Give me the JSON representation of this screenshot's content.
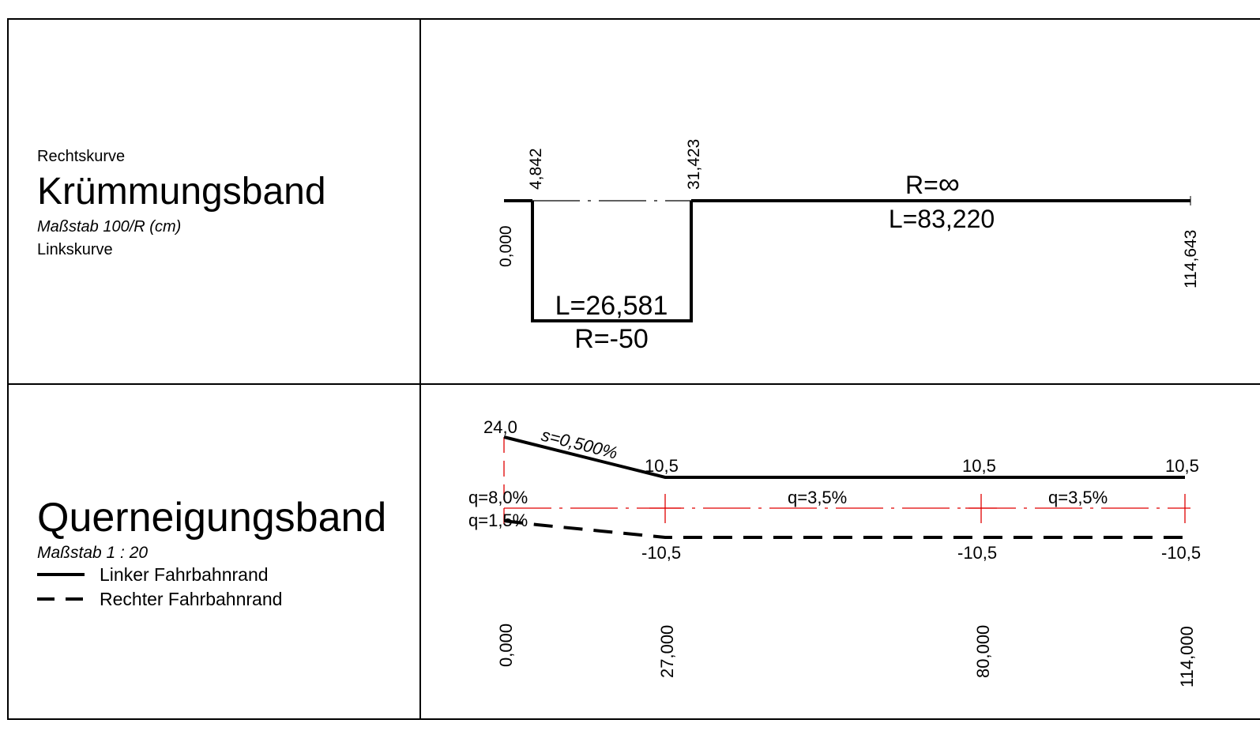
{
  "colors": {
    "line": "#000000",
    "reference": "#e00000",
    "background": "#ffffff"
  },
  "curvature_band": {
    "label_right": "Rechtskurve",
    "title": "Krümmungsband",
    "scale": "Maßstab 100/R (cm)",
    "label_left": "Linkskurve",
    "stations": [
      "0,000",
      "4,842",
      "31,423",
      "114,643"
    ],
    "segments": [
      {
        "length_label": "L=26,581",
        "radius_label": "R=-50"
      },
      {
        "radius_label": "R=",
        "radius_symbol": "∞",
        "length_label": "L=83,220"
      }
    ]
  },
  "crossfall_band": {
    "title": "Querneigungsband",
    "scale": "Maßstab 1 : 20",
    "legend": [
      {
        "label": "Linker Fahrbahnrand",
        "style": "solid"
      },
      {
        "label": "Rechter Fahrbahnrand",
        "style": "dashed"
      }
    ],
    "left_values": [
      "24,0",
      "10,5",
      "10,5",
      "10,5"
    ],
    "right_values": [
      "-10,5",
      "-10,5",
      "-10,5"
    ],
    "slope_label": "s=0,500%",
    "crossfall_labels": [
      "q=8,0%",
      "q=1,5%",
      "q=3,5%",
      "q=3,5%"
    ],
    "stations": [
      "0,000",
      "27,000",
      "80,000",
      "114,000"
    ]
  }
}
